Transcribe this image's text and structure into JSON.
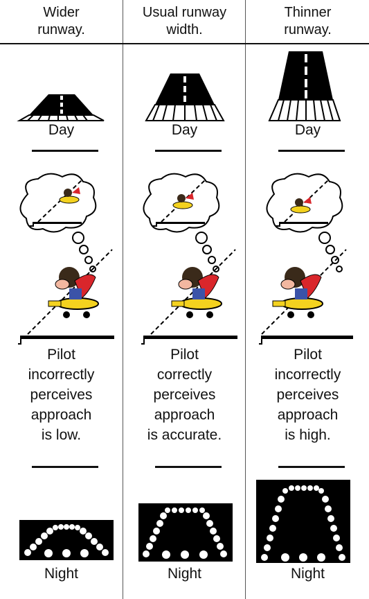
{
  "columns": [
    {
      "header": [
        "Wider",
        "runway."
      ],
      "day_label": "Day",
      "description": [
        "Pilot",
        "incorrectly",
        "perceives",
        "approach",
        "is low."
      ],
      "night_label": "Night"
    },
    {
      "header": [
        "Usual runway",
        "width."
      ],
      "day_label": "Day",
      "description": [
        "Pilot",
        "correctly",
        "perceives",
        "approach",
        "is accurate."
      ],
      "night_label": "Night"
    },
    {
      "header": [
        "Thinner",
        "runway."
      ],
      "day_label": "Day",
      "description": [
        "Pilot",
        "incorrectly",
        "perceives",
        "approach",
        "is high."
      ],
      "night_label": "Night"
    }
  ]
}
